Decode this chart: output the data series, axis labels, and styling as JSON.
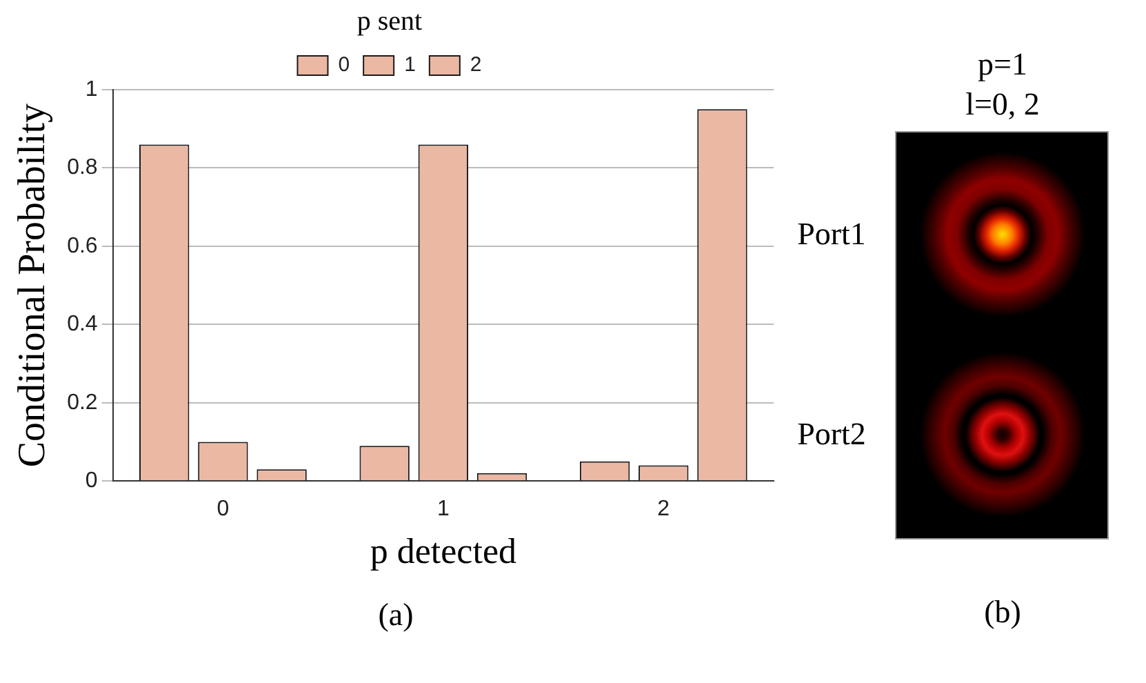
{
  "chart_data": {
    "type": "bar",
    "categories": [
      "0",
      "1",
      "2"
    ],
    "xlabel": "p detected",
    "ylabel": "Conditional Probability",
    "legend_title": "p sent",
    "legend": "top",
    "grid": "y",
    "ylim": [
      0,
      1
    ],
    "yticks": [
      0,
      0.2,
      0.4,
      0.6,
      0.8,
      1
    ],
    "series": [
      {
        "name": "0",
        "color": "#ebb8a4",
        "values": [
          0.86,
          0.09,
          0.05
        ]
      },
      {
        "name": "1",
        "color": "#ebb8a4",
        "values": [
          0.1,
          0.86,
          0.04
        ]
      },
      {
        "name": "2",
        "color": "#ebb8a4",
        "values": [
          0.03,
          0.02,
          0.95
        ]
      }
    ],
    "annotations": [
      "(a)",
      "p=1",
      "l=0, 2",
      "Port1",
      "Port2",
      "(b)"
    ]
  }
}
